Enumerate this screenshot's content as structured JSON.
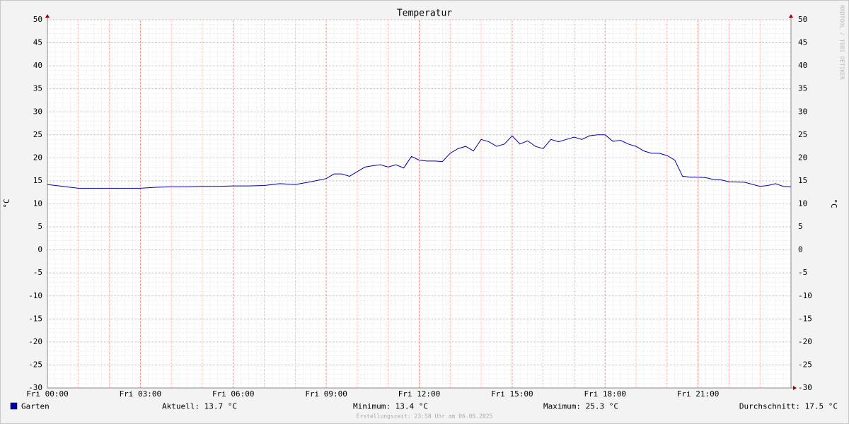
{
  "chart_data": {
    "type": "line",
    "title": "Temperatur",
    "y_label": "°C",
    "watermark": "RRDTOOL / TOBI OETIKER",
    "x": [
      0,
      0.5,
      1,
      1.5,
      2,
      2.5,
      3,
      3.5,
      4,
      4.5,
      5,
      5.5,
      6,
      6.5,
      7,
      7.5,
      8,
      8.5,
      9,
      9.25,
      9.5,
      9.75,
      10,
      10.25,
      10.5,
      10.75,
      11,
      11.25,
      11.5,
      11.75,
      12,
      12.25,
      12.5,
      12.75,
      13,
      13.25,
      13.5,
      13.75,
      14,
      14.25,
      14.5,
      14.75,
      15,
      15.25,
      15.5,
      15.75,
      16,
      16.25,
      16.5,
      16.75,
      17,
      17.25,
      17.5,
      17.75,
      18,
      18.25,
      18.5,
      18.75,
      19,
      19.25,
      19.5,
      19.75,
      20,
      20.25,
      20.5,
      20.75,
      21,
      21.25,
      21.5,
      21.75,
      22,
      22.5,
      23,
      23.25,
      23.5,
      23.75,
      24
    ],
    "series": [
      {
        "name": "Garten",
        "color": "#0000aa",
        "values": [
          14.2,
          13.8,
          13.4,
          13.4,
          13.4,
          13.4,
          13.4,
          13.6,
          13.7,
          13.7,
          13.8,
          13.8,
          13.9,
          13.9,
          14.0,
          14.4,
          14.2,
          14.8,
          15.5,
          16.5,
          16.5,
          16.0,
          17.0,
          18.0,
          18.3,
          18.5,
          18.0,
          18.5,
          17.8,
          20.3,
          19.5,
          19.3,
          19.3,
          19.2,
          21.0,
          22.0,
          22.5,
          21.5,
          24.0,
          23.5,
          22.5,
          23.0,
          24.8,
          23.0,
          23.7,
          22.5,
          22.0,
          24.0,
          23.5,
          24.0,
          24.5,
          24.0,
          24.8,
          25.0,
          25.0,
          23.6,
          23.8,
          23.0,
          22.5,
          21.5,
          21.0,
          21.0,
          20.5,
          19.5,
          16.0,
          15.8,
          15.8,
          15.7,
          15.3,
          15.2,
          14.8,
          14.7,
          13.8,
          14.0,
          14.4,
          13.8,
          13.7
        ]
      }
    ],
    "xlim": [
      0,
      24
    ],
    "xticks": [
      {
        "value": 0,
        "label": "Fri 00:00"
      },
      {
        "value": 3,
        "label": "Fri 03:00"
      },
      {
        "value": 6,
        "label": "Fri 06:00"
      },
      {
        "value": 9,
        "label": "Fri 09:00"
      },
      {
        "value": 12,
        "label": "Fri 12:00"
      },
      {
        "value": 15,
        "label": "Fri 15:00"
      },
      {
        "value": 18,
        "label": "Fri 18:00"
      },
      {
        "value": 21,
        "label": "Fri 21:00"
      }
    ],
    "ylim": [
      -30,
      50
    ],
    "yticks": [
      -30,
      -25,
      -20,
      -15,
      -10,
      -5,
      0,
      5,
      10,
      15,
      20,
      25,
      30,
      35,
      40,
      45,
      50
    ],
    "grid": true,
    "stats": [
      "Aktuell: 13.7 °C",
      "Minimum: 13.4 °C",
      "Maximum: 25.3 °C",
      "Durchschnitt: 17.5 °C"
    ],
    "footer": "Erstellungszeit: 23:58 Uhr am 06.06.2025"
  }
}
